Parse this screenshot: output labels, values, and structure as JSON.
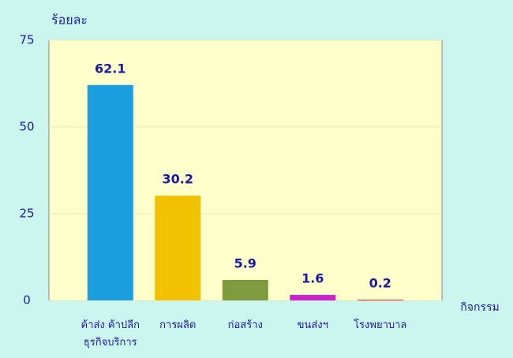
{
  "chart_data": {
    "type": "bar",
    "y_label": "ร้อยละ",
    "x_label": "กิจกรรม",
    "categories": [
      "ค้าส่ง ค้าปลีก\nธุรกิจบริการ",
      "การผลิต",
      "ก่อสร้าง",
      "ขนส่งฯ",
      "โรงพยาบาล"
    ],
    "values": [
      62.1,
      30.2,
      5.9,
      1.6,
      0.2
    ],
    "colors": [
      "#1a9ee0",
      "#f2c200",
      "#7d9a3e",
      "#cc22cc",
      "#dd1111"
    ],
    "ylim": [
      0,
      75
    ],
    "yticks": [
      0,
      25,
      50,
      75
    ],
    "grid": true
  }
}
